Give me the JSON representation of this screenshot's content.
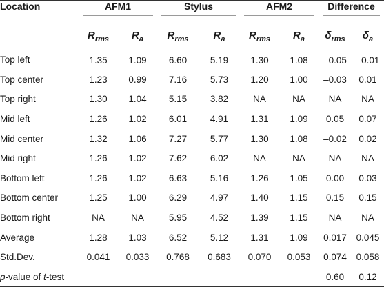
{
  "header": {
    "location": "Location",
    "groups": [
      "AFM1",
      "Stylus",
      "AFM2",
      "Difference"
    ],
    "sub": [
      {
        "main": "R",
        "sub": "rms"
      },
      {
        "main": "R",
        "sub": "a"
      },
      {
        "main": "R",
        "sub": "rms"
      },
      {
        "main": "R",
        "sub": "a"
      },
      {
        "main": "R",
        "sub": "rms"
      },
      {
        "main": "R",
        "sub": "a"
      },
      {
        "main": "δ",
        "sub": "rms"
      },
      {
        "main": "δ",
        "sub": "a"
      }
    ]
  },
  "rows": [
    {
      "location": "Top left",
      "values": [
        "1.35",
        "1.09",
        "6.60",
        "5.19",
        "1.30",
        "1.08",
        "–0.05",
        "–0.01"
      ]
    },
    {
      "location": "Top center",
      "values": [
        "1.23",
        "0.99",
        "7.16",
        "5.73",
        "1.20",
        "1.00",
        "–0.03",
        "0.01"
      ]
    },
    {
      "location": "Top right",
      "values": [
        "1.30",
        "1.04",
        "5.15",
        "3.82",
        "NA",
        "NA",
        "NA",
        "NA"
      ]
    },
    {
      "location": "Mid left",
      "values": [
        "1.26",
        "1.02",
        "6.01",
        "4.91",
        "1.31",
        "1.09",
        "0.05",
        "0.07"
      ]
    },
    {
      "location": "Mid center",
      "values": [
        "1.32",
        "1.06",
        "7.27",
        "5.77",
        "1.30",
        "1.08",
        "–0.02",
        "0.02"
      ]
    },
    {
      "location": "Mid right",
      "values": [
        "1.26",
        "1.02",
        "7.62",
        "6.02",
        "NA",
        "NA",
        "NA",
        "NA"
      ]
    },
    {
      "location": "Bottom left",
      "values": [
        "1.26",
        "1.02",
        "6.63",
        "5.16",
        "1.26",
        "1.05",
        "0.00",
        "0.03"
      ]
    },
    {
      "location": "Bottom center",
      "values": [
        "1.25",
        "1.00",
        "6.29",
        "4.97",
        "1.40",
        "1.15",
        "0.15",
        "0.15"
      ]
    },
    {
      "location": "Bottom right",
      "values": [
        "NA",
        "NA",
        "5.95",
        "4.52",
        "1.39",
        "1.15",
        "NA",
        "NA"
      ]
    },
    {
      "location": "Average",
      "indent": true,
      "values": [
        "1.28",
        "1.03",
        "6.52",
        "5.12",
        "1.31",
        "1.09",
        "0.017",
        "0.045"
      ]
    },
    {
      "location": "Std.Dev.",
      "indent": true,
      "values": [
        "0.041",
        "0.033",
        "0.768",
        "0.683",
        "0.070",
        "0.053",
        "0.074",
        "0.058"
      ]
    }
  ],
  "pvalue": {
    "label_prefix": "p",
    "label_middle": "-value of ",
    "label_t": "t",
    "label_suffix": "-test",
    "values": [
      "0.60",
      "0.12"
    ]
  }
}
